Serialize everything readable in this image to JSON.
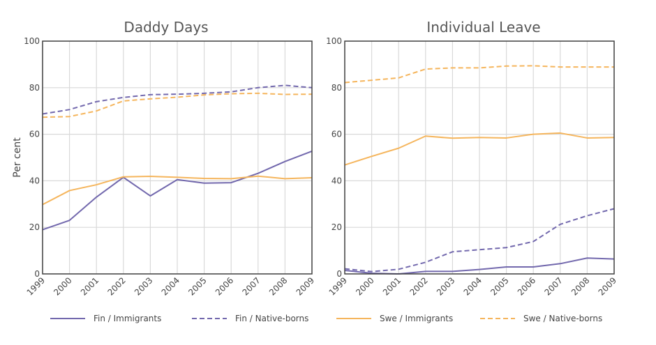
{
  "colors": {
    "fin": "#7268ad",
    "swe": "#f5b55c",
    "grid": "#d9d9d9",
    "frame": "#404040"
  },
  "legend": [
    {
      "label": "Fin / Immigrants",
      "color": "#7268ad",
      "dash": false
    },
    {
      "label": "Fin / Native-borns",
      "color": "#7268ad",
      "dash": true
    },
    {
      "label": "Swe / Immigrants",
      "color": "#f5b55c",
      "dash": false
    },
    {
      "label": "Swe / Native-borns",
      "color": "#f5b55c",
      "dash": true
    }
  ],
  "chart_data": [
    {
      "type": "line",
      "title": "Daddy Days",
      "ylabel": "Per cent",
      "xlabel": "",
      "x": [
        1999,
        2000,
        2001,
        2002,
        2003,
        2004,
        2005,
        2006,
        2007,
        2008,
        2009
      ],
      "ylim": [
        0,
        100
      ],
      "yticks": [
        0,
        20,
        40,
        60,
        80,
        100
      ],
      "grid": true,
      "series": [
        {
          "name": "Fin / Immigrants",
          "color": "#7268ad",
          "dash": false,
          "values": [
            19,
            23,
            33,
            41.5,
            33.5,
            40.5,
            39,
            39.2,
            43.2,
            48.3,
            52.7
          ]
        },
        {
          "name": "Fin / Native-borns",
          "color": "#7268ad",
          "dash": true,
          "values": [
            68.7,
            70.6,
            74,
            75.8,
            77,
            77.2,
            77.6,
            78.2,
            80,
            81,
            80
          ]
        },
        {
          "name": "Swe / Immigrants",
          "color": "#f5b55c",
          "dash": false,
          "values": [
            29.8,
            35.8,
            38.3,
            41.7,
            41.9,
            41.5,
            41,
            40.9,
            42,
            40.9,
            41.3
          ]
        },
        {
          "name": "Swe / Native-borns",
          "color": "#f5b55c",
          "dash": true,
          "values": [
            67.3,
            67.6,
            70,
            74.3,
            75.2,
            75.9,
            76.9,
            77.4,
            77.6,
            77.1,
            77.2
          ]
        }
      ]
    },
    {
      "type": "line",
      "title": "Individual Leave",
      "ylabel": "",
      "xlabel": "",
      "x": [
        1999,
        2000,
        2001,
        2002,
        2003,
        2004,
        2005,
        2006,
        2007,
        2008,
        2009
      ],
      "ylim": [
        0,
        100
      ],
      "yticks": [
        0,
        20,
        40,
        60,
        80,
        100
      ],
      "grid": true,
      "series": [
        {
          "name": "Fin / Immigrants",
          "color": "#7268ad",
          "dash": false,
          "values": [
            1.5,
            0.3,
            0,
            1.1,
            1.1,
            1.9,
            3,
            3,
            4.4,
            6.8,
            6.4
          ]
        },
        {
          "name": "Fin / Native-borns",
          "color": "#7268ad",
          "dash": true,
          "values": [
            2.2,
            1,
            2,
            5,
            9.5,
            10.4,
            11.3,
            13.9,
            21.3,
            25,
            28
          ]
        },
        {
          "name": "Swe / Immigrants",
          "color": "#f5b55c",
          "dash": false,
          "values": [
            46.8,
            50.5,
            54,
            59.2,
            58.3,
            58.6,
            58.4,
            60,
            60.5,
            58.4,
            58.6
          ]
        },
        {
          "name": "Swe / Native-borns",
          "color": "#f5b55c",
          "dash": true,
          "values": [
            82.2,
            83.2,
            84.2,
            88,
            88.5,
            88.5,
            89.3,
            89.4,
            88.9,
            88.9,
            88.9
          ]
        }
      ]
    }
  ]
}
